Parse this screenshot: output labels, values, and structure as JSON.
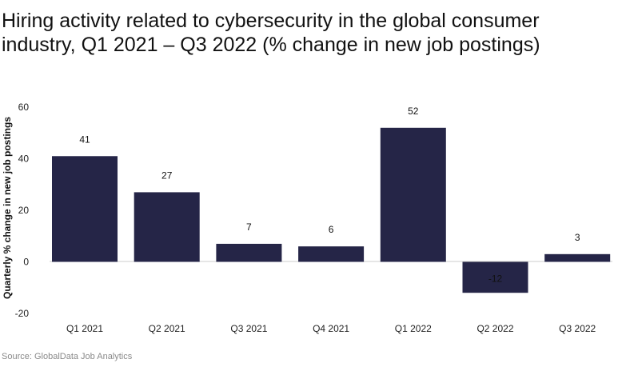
{
  "chart_data": {
    "type": "bar",
    "title": "Hiring activity related to cybersecurity in the global consumer industry, Q1 2021 – Q3 2022 (% change in new job postings)",
    "xlabel": "",
    "ylabel": "Quarterly % change in new job postings",
    "categories": [
      "Q1 2021",
      "Q2 2021",
      "Q3 2021",
      "Q4 2021",
      "Q1 2022",
      "Q2 2022",
      "Q3 2022"
    ],
    "values": [
      41,
      27,
      7,
      6,
      52,
      -12,
      3
    ],
    "value_labels": [
      "41",
      "27",
      "7",
      "6",
      "52",
      "-12",
      "3"
    ],
    "ylim": [
      -20,
      60
    ],
    "yticks": [
      "60",
      "40",
      "20",
      "0",
      "-20"
    ],
    "ytick_values": [
      60,
      40,
      20,
      0,
      -20
    ],
    "grid": false,
    "legend": "none",
    "bar_color": "#252547",
    "source": "Source: GlobalData Job Analytics"
  }
}
